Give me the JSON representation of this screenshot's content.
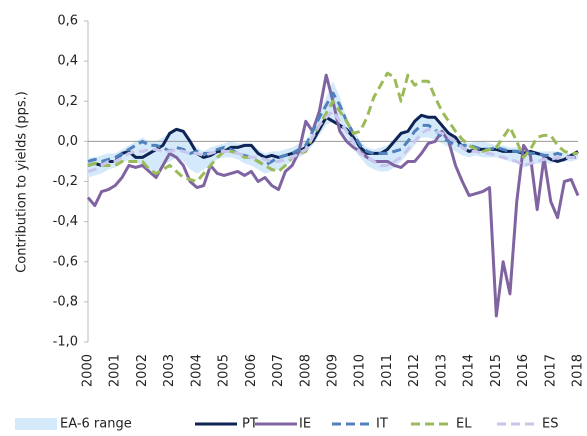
{
  "chart_data": {
    "type": "line",
    "y_label": "Contribution to yields (pps.)",
    "xlim": [
      2000,
      2018
    ],
    "xticks": [
      2000,
      2001,
      2002,
      2003,
      2004,
      2005,
      2006,
      2007,
      2008,
      2009,
      2010,
      2011,
      2012,
      2013,
      2014,
      2015,
      2016,
      2017,
      2018
    ],
    "ylim": [
      -1.0,
      0.6
    ],
    "yticks": [
      {
        "value": -1.0,
        "label": "-1,0"
      },
      {
        "value": -0.8,
        "label": "-0,8"
      },
      {
        "value": -0.6,
        "label": "-0,6"
      },
      {
        "value": -0.4,
        "label": "-0,4"
      },
      {
        "value": -0.2,
        "label": "-0,2"
      },
      {
        "value": 0.0,
        "label": "0,0"
      },
      {
        "value": 0.2,
        "label": "0,2"
      },
      {
        "value": 0.4,
        "label": "0,4"
      },
      {
        "value": 0.6,
        "label": "0,6"
      }
    ],
    "zero_line": true,
    "legend": "bottom",
    "x": [
      2000,
      2000.25,
      2000.5,
      2000.75,
      2001,
      2001.25,
      2001.5,
      2001.75,
      2002,
      2002.25,
      2002.5,
      2002.75,
      2003,
      2003.25,
      2003.5,
      2003.75,
      2004,
      2004.25,
      2004.5,
      2004.75,
      2005,
      2005.25,
      2005.5,
      2005.75,
      2006,
      2006.25,
      2006.5,
      2006.75,
      2007,
      2007.25,
      2007.5,
      2007.75,
      2008,
      2008.25,
      2008.5,
      2008.75,
      2009,
      2009.25,
      2009.5,
      2009.75,
      2010,
      2010.25,
      2010.5,
      2010.75,
      2011,
      2011.25,
      2011.5,
      2011.75,
      2012,
      2012.25,
      2012.5,
      2012.75,
      2013,
      2013.25,
      2013.5,
      2013.75,
      2014,
      2014.25,
      2014.5,
      2014.75,
      2015,
      2015.25,
      2015.5,
      2015.75,
      2016,
      2016.25,
      2016.5,
      2016.75,
      2017,
      2017.25,
      2017.5,
      2017.75,
      2018
    ],
    "series": [
      {
        "name": "EA-6 range",
        "color": "#d4e9f9",
        "style": "band",
        "lower": [
          -0.18,
          -0.17,
          -0.16,
          -0.14,
          -0.13,
          -0.11,
          -0.09,
          -0.1,
          -0.12,
          -0.14,
          -0.15,
          -0.12,
          -0.1,
          -0.08,
          -0.1,
          -0.14,
          -0.16,
          -0.14,
          -0.12,
          -0.09,
          -0.08,
          -0.08,
          -0.09,
          -0.11,
          -0.12,
          -0.14,
          -0.16,
          -0.15,
          -0.14,
          -0.12,
          -0.1,
          -0.08,
          -0.06,
          -0.02,
          0.03,
          0.08,
          0.1,
          0.06,
          0.02,
          -0.04,
          -0.08,
          -0.12,
          -0.14,
          -0.15,
          -0.15,
          -0.13,
          -0.1,
          -0.06,
          -0.02,
          0.02,
          0.02,
          0.01,
          -0.01,
          -0.03,
          -0.05,
          -0.07,
          -0.08,
          -0.07,
          -0.08,
          -0.08,
          -0.08,
          -0.09,
          -0.1,
          -0.11,
          -0.13,
          -0.12,
          -0.11,
          -0.11,
          -0.11,
          -0.1,
          -0.1,
          -0.1,
          -0.09
        ],
        "upper": [
          -0.08,
          -0.08,
          -0.07,
          -0.06,
          -0.06,
          -0.04,
          -0.02,
          0.0,
          0.02,
          0.0,
          0.0,
          0.02,
          0.04,
          0.06,
          0.05,
          0.0,
          -0.03,
          -0.05,
          -0.03,
          -0.02,
          -0.01,
          0.0,
          -0.01,
          -0.01,
          -0.01,
          -0.04,
          -0.06,
          -0.05,
          -0.05,
          -0.04,
          -0.03,
          -0.01,
          0.0,
          0.06,
          0.14,
          0.22,
          0.3,
          0.22,
          0.12,
          0.06,
          0.0,
          -0.03,
          -0.04,
          -0.03,
          -0.02,
          0.01,
          0.05,
          0.06,
          0.1,
          0.13,
          0.12,
          0.12,
          0.09,
          0.05,
          0.03,
          0.0,
          -0.01,
          0.0,
          0.0,
          -0.01,
          -0.02,
          -0.02,
          -0.03,
          -0.03,
          -0.04,
          -0.04,
          -0.05,
          -0.05,
          -0.05,
          -0.05,
          -0.06,
          -0.06,
          -0.05
        ]
      },
      {
        "name": "PT",
        "color": "#0d2454",
        "style": "solid",
        "width": 3,
        "values": [
          -0.12,
          -0.11,
          -0.12,
          -0.1,
          -0.1,
          -0.06,
          -0.05,
          -0.08,
          -0.08,
          -0.06,
          -0.04,
          -0.02,
          0.04,
          0.06,
          0.05,
          0.0,
          -0.06,
          -0.08,
          -0.07,
          -0.05,
          -0.05,
          -0.03,
          -0.03,
          -0.02,
          -0.02,
          -0.06,
          -0.08,
          -0.07,
          -0.08,
          -0.07,
          -0.06,
          -0.05,
          -0.03,
          0.0,
          0.06,
          0.12,
          0.1,
          0.08,
          0.06,
          0.02,
          -0.03,
          -0.06,
          -0.06,
          -0.06,
          -0.04,
          0.0,
          0.04,
          0.05,
          0.1,
          0.13,
          0.12,
          0.12,
          0.08,
          0.04,
          0.02,
          -0.03,
          -0.05,
          -0.04,
          -0.04,
          -0.04,
          -0.04,
          -0.05,
          -0.05,
          -0.05,
          -0.06,
          -0.05,
          -0.06,
          -0.07,
          -0.09,
          -0.1,
          -0.09,
          -0.07,
          -0.05
        ]
      },
      {
        "name": "IE",
        "color": "#8064a2",
        "style": "solid",
        "width": 3,
        "values": [
          -0.28,
          -0.32,
          -0.25,
          -0.24,
          -0.22,
          -0.18,
          -0.12,
          -0.13,
          -0.12,
          -0.15,
          -0.18,
          -0.12,
          -0.06,
          -0.08,
          -0.12,
          -0.2,
          -0.23,
          -0.22,
          -0.12,
          -0.16,
          -0.17,
          -0.16,
          -0.15,
          -0.17,
          -0.15,
          -0.2,
          -0.18,
          -0.22,
          -0.24,
          -0.15,
          -0.12,
          -0.05,
          0.1,
          0.05,
          0.15,
          0.33,
          0.2,
          0.05,
          0.0,
          -0.03,
          -0.05,
          -0.08,
          -0.1,
          -0.1,
          -0.1,
          -0.12,
          -0.13,
          -0.1,
          -0.1,
          -0.06,
          -0.01,
          0.0,
          0.05,
          0.0,
          -0.12,
          -0.2,
          -0.27,
          -0.26,
          -0.25,
          -0.23,
          -0.87,
          -0.6,
          -0.76,
          -0.3,
          -0.02,
          -0.07,
          -0.34,
          -0.08,
          -0.3,
          -0.38,
          -0.2,
          -0.19,
          -0.27
        ]
      },
      {
        "name": "IT",
        "color": "#4f81bd",
        "style": "dashed",
        "width": 3,
        "values": [
          -0.1,
          -0.09,
          -0.1,
          -0.09,
          -0.08,
          -0.06,
          -0.04,
          -0.02,
          0.0,
          -0.02,
          -0.02,
          -0.03,
          -0.05,
          -0.03,
          -0.04,
          -0.06,
          -0.05,
          -0.06,
          -0.06,
          -0.04,
          -0.03,
          -0.04,
          -0.06,
          -0.07,
          -0.08,
          -0.1,
          -0.12,
          -0.1,
          -0.08,
          -0.07,
          -0.06,
          -0.04,
          -0.02,
          0.05,
          0.12,
          0.18,
          0.24,
          0.18,
          0.1,
          0.04,
          -0.02,
          -0.05,
          -0.06,
          -0.06,
          -0.06,
          -0.05,
          -0.04,
          0.0,
          0.05,
          0.08,
          0.08,
          0.06,
          0.02,
          0.0,
          -0.02,
          -0.02,
          -0.02,
          -0.03,
          -0.04,
          -0.04,
          -0.03,
          -0.04,
          -0.05,
          -0.05,
          -0.05,
          -0.06,
          -0.06,
          -0.07,
          -0.07,
          -0.06,
          -0.07,
          -0.08,
          -0.08
        ]
      },
      {
        "name": "EL",
        "color": "#9bbb59",
        "style": "dashed",
        "width": 3,
        "values": [
          -0.12,
          -0.11,
          -0.12,
          -0.12,
          -0.12,
          -0.1,
          -0.1,
          -0.1,
          -0.1,
          -0.14,
          -0.16,
          -0.14,
          -0.12,
          -0.15,
          -0.18,
          -0.19,
          -0.2,
          -0.16,
          -0.12,
          -0.08,
          -0.05,
          -0.05,
          -0.06,
          -0.08,
          -0.08,
          -0.1,
          -0.12,
          -0.14,
          -0.15,
          -0.12,
          -0.08,
          -0.06,
          -0.05,
          0.02,
          0.08,
          0.14,
          0.2,
          0.15,
          0.1,
          0.04,
          0.05,
          0.12,
          0.22,
          0.28,
          0.34,
          0.32,
          0.2,
          0.33,
          0.28,
          0.3,
          0.3,
          0.22,
          0.15,
          0.1,
          0.05,
          0.01,
          -0.02,
          -0.04,
          -0.05,
          -0.04,
          -0.03,
          0.02,
          0.07,
          0.0,
          -0.08,
          -0.04,
          0.02,
          0.03,
          0.03,
          -0.02,
          -0.05,
          -0.06,
          -0.06
        ]
      },
      {
        "name": "ES",
        "color": "#c9c6ee",
        "style": "dashed",
        "width": 3,
        "values": [
          -0.15,
          -0.14,
          -0.12,
          -0.1,
          -0.1,
          -0.08,
          -0.06,
          -0.05,
          -0.05,
          -0.04,
          -0.04,
          -0.05,
          -0.05,
          -0.04,
          -0.05,
          -0.06,
          -0.06,
          -0.07,
          -0.06,
          -0.05,
          -0.05,
          -0.05,
          -0.06,
          -0.07,
          -0.08,
          -0.08,
          -0.09,
          -0.1,
          -0.1,
          -0.09,
          -0.08,
          -0.06,
          -0.04,
          0.02,
          0.08,
          0.12,
          0.15,
          0.1,
          0.05,
          0.0,
          -0.06,
          -0.08,
          -0.1,
          -0.12,
          -0.12,
          -0.1,
          -0.08,
          -0.04,
          0.0,
          0.04,
          0.06,
          0.05,
          0.04,
          0.02,
          0.0,
          -0.03,
          -0.05,
          -0.05,
          -0.06,
          -0.06,
          -0.07,
          -0.08,
          -0.09,
          -0.1,
          -0.12,
          -0.11,
          -0.1,
          -0.09,
          -0.09,
          -0.08,
          -0.08,
          -0.08,
          -0.08
        ]
      }
    ]
  }
}
